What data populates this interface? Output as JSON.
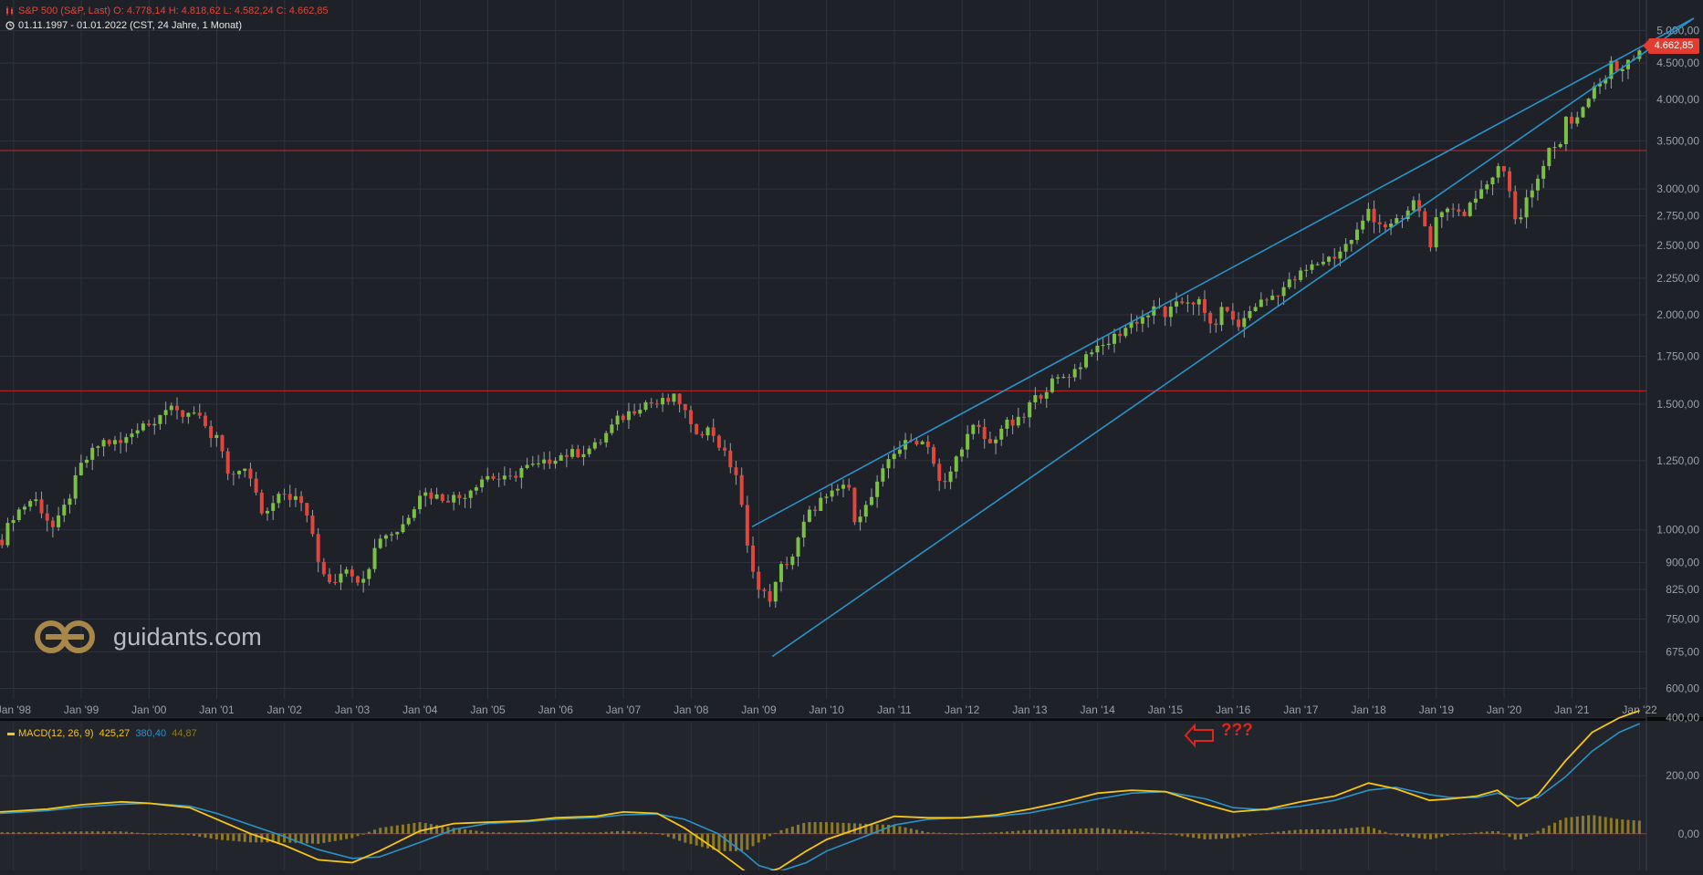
{
  "header": {
    "line1": "S&P 500 (S&P, Last)   O: 4.778,14   H: 4.818,62   L: 4.582,24   C: 4.662,85",
    "line2": "01.11.1997 - 01.01.2022   (CST, 24 Jahre, 1 Monat)"
  },
  "price_tag": "4.662,85",
  "logo_text": "guidants.com",
  "annotation": "???",
  "macd_legend": {
    "name": "MACD(12, 26, 9)",
    "macd": "425,27",
    "signal": "380,40",
    "hist": "44,87"
  },
  "colors": {
    "background": "#1e2128",
    "grid": "#2f333c",
    "up": "#7bc043",
    "down": "#e0463c",
    "channel": "#2a93c9",
    "hline": "#c62828",
    "macd": "#f5c518",
    "signal": "#2a93c9",
    "histogram": "#8a7a2a"
  },
  "chart_data": [
    {
      "type": "candlestick",
      "title": "S&P 500 (S&P, Last)",
      "period": "monthly",
      "yscale": "log",
      "ylim": [
        580,
        5200
      ],
      "xlim": [
        1997.8,
        2022.1
      ],
      "xticks": [
        "Jan '98",
        "Jan '99",
        "Jan '00",
        "Jan '01",
        "Jan '02",
        "Jan '03",
        "Jan '04",
        "Jan '05",
        "Jan '06",
        "Jan '07",
        "Jan '08",
        "Jan '09",
        "Jan '10",
        "Jan '11",
        "Jan '12",
        "Jan '13",
        "Jan '14",
        "Jan '15",
        "Jan '16",
        "Jan '17",
        "Jan '18",
        "Jan '19",
        "Jan '20",
        "Jan '21",
        "Jan '22"
      ],
      "yticks": [
        {
          "v": 5000,
          "label": "5.000,00"
        },
        {
          "v": 4500,
          "label": "4.500,00"
        },
        {
          "v": 4000,
          "label": "4.000,00"
        },
        {
          "v": 3500,
          "label": "3.500,00"
        },
        {
          "v": 3000,
          "label": "3.000,00"
        },
        {
          "v": 2750,
          "label": "2.750,00"
        },
        {
          "v": 2500,
          "label": "2.500,00"
        },
        {
          "v": 2250,
          "label": "2.250,00"
        },
        {
          "v": 2000,
          "label": "2.000,00"
        },
        {
          "v": 1750,
          "label": "1.750,00"
        },
        {
          "v": 1500,
          "label": "1.500,00"
        },
        {
          "v": 1250,
          "label": "1.250,00"
        },
        {
          "v": 1000,
          "label": "1.000,00"
        },
        {
          "v": 900,
          "label": "900,00"
        },
        {
          "v": 825,
          "label": "825,00"
        },
        {
          "v": 750,
          "label": "750,00"
        },
        {
          "v": 675,
          "label": "675,00"
        },
        {
          "v": 600,
          "label": "600,00"
        }
      ],
      "horizontal_lines": [
        3395,
        1565
      ],
      "channel_lines": [
        {
          "x1": 2008.9,
          "y1": 1010,
          "x2": 2022.8,
          "y2": 5200
        },
        {
          "x1": 2009.2,
          "y1": 665,
          "x2": 2022.8,
          "y2": 5200
        }
      ],
      "closes": {
        "1997.8": 955,
        "1998.0": 1050,
        "1998.3": 1110,
        "1998.6": 1000,
        "1998.8": 1100,
        "1999.0": 1230,
        "1999.3": 1330,
        "1999.6": 1320,
        "1999.9": 1420,
        "2000.0": 1400,
        "2000.2": 1480,
        "2000.5": 1450,
        "2000.7": 1480,
        "2000.9": 1320,
        "2001.0": 1360,
        "2001.2": 1160,
        "2001.4": 1240,
        "2001.7": 1040,
        "2001.9": 1140,
        "2002.0": 1130,
        "2002.3": 1080,
        "2002.5": 900,
        "2002.7": 840,
        "2002.9": 900,
        "2003.0": 850,
        "2003.2": 870,
        "2003.4": 980,
        "2003.7": 1000,
        "2003.9": 1080,
        "2004.0": 1130,
        "2004.3": 1110,
        "2004.6": 1110,
        "2004.9": 1180,
        "2005.0": 1190,
        "2005.3": 1170,
        "2005.5": 1220,
        "2005.8": 1230,
        "2005.9": 1250,
        "2006.0": 1270,
        "2006.3": 1280,
        "2006.6": 1310,
        "2006.9": 1420,
        "2007.0": 1440,
        "2007.3": 1510,
        "2007.5": 1500,
        "2007.8": 1530,
        "2007.9": 1470,
        "2008.0": 1380,
        "2008.3": 1380,
        "2008.5": 1270,
        "2008.7": 1180,
        "2008.8": 960,
        "2008.9": 900,
        "2009.0": 820,
        "2009.2": 800,
        "2009.3": 880,
        "2009.5": 920,
        "2009.7": 1040,
        "2009.9": 1100,
        "2010.0": 1100,
        "2010.3": 1170,
        "2010.4": 1040,
        "2010.6": 1080,
        "2010.8": 1180,
        "2010.9": 1250,
        "2011.0": 1290,
        "2011.3": 1340,
        "2011.5": 1320,
        "2011.6": 1220,
        "2011.7": 1130,
        "2011.9": 1250,
        "2012.0": 1320,
        "2012.2": 1400,
        "2012.4": 1310,
        "2012.6": 1400,
        "2012.8": 1410,
        "2012.9": 1430,
        "2013.0": 1500,
        "2013.3": 1600,
        "2013.5": 1640,
        "2013.7": 1680,
        "2013.9": 1800,
        "2014.0": 1780,
        "2014.3": 1880,
        "2014.5": 1950,
        "2014.7": 1990,
        "2014.9": 2050,
        "2015.0": 2000,
        "2015.3": 2100,
        "2015.5": 2080,
        "2015.6": 1970,
        "2015.7": 1920,
        "2015.9": 2070,
        "2016.0": 1940,
        "2016.1": 1930,
        "2016.3": 2060,
        "2016.5": 2100,
        "2016.7": 2170,
        "2016.9": 2240,
        "2017.0": 2280,
        "2017.3": 2380,
        "2017.5": 2420,
        "2017.7": 2520,
        "2017.9": 2670,
        "2018.0": 2820,
        "2018.1": 2710,
        "2018.3": 2650,
        "2018.5": 2720,
        "2018.7": 2900,
        "2018.8": 2710,
        "2018.9": 2500,
        "2019.0": 2700,
        "2019.3": 2850,
        "2019.4": 2750,
        "2019.6": 2980,
        "2019.8": 3000,
        "2019.9": 3230,
        "2020.0": 3230,
        "2020.1": 2950,
        "2020.2": 2580,
        "2020.3": 2900,
        "2020.5": 3100,
        "2020.7": 3500,
        "2020.8": 3360,
        "2020.9": 3750,
        "2021.0": 3710,
        "2021.2": 3970,
        "2021.3": 4180,
        "2021.5": 4300,
        "2021.6": 4520,
        "2021.7": 4300,
        "2021.8": 4600,
        "2021.9": 4570,
        "2022.0": 4660
      }
    },
    {
      "type": "line",
      "title": "MACD(12, 26, 9)",
      "ylim": [
        -70,
        440
      ],
      "yticks": [
        {
          "v": 400,
          "label": "400,00"
        },
        {
          "v": 200,
          "label": "200,00"
        },
        {
          "v": 0,
          "label": "0,00"
        }
      ],
      "series": [
        {
          "name": "MACD",
          "x": [
            1997.8,
            1998.5,
            1999.0,
            1999.6,
            2000.0,
            2000.6,
            2001.0,
            2001.5,
            2002.0,
            2002.5,
            2003.0,
            2003.4,
            2004.0,
            2004.5,
            2005.0,
            2005.6,
            2006.0,
            2006.6,
            2007.0,
            2007.5,
            2007.9,
            2008.4,
            2008.8,
            2009.0,
            2009.3,
            2009.7,
            2010.0,
            2010.5,
            2011.0,
            2011.5,
            2012.0,
            2012.5,
            2013.0,
            2013.5,
            2014.0,
            2014.5,
            2015.0,
            2015.6,
            2016.0,
            2016.5,
            2017.0,
            2017.5,
            2018.0,
            2018.4,
            2018.9,
            2019.2,
            2019.6,
            2019.9,
            2020.2,
            2020.5,
            2020.9,
            2021.3,
            2021.7,
            2022.0
          ],
          "values": [
            75,
            85,
            100,
            110,
            105,
            90,
            50,
            0,
            -40,
            -90,
            -100,
            -60,
            10,
            35,
            40,
            45,
            55,
            60,
            75,
            70,
            20,
            -60,
            -130,
            -140,
            -120,
            -60,
            -20,
            20,
            60,
            55,
            55,
            65,
            85,
            110,
            140,
            150,
            145,
            100,
            75,
            85,
            110,
            130,
            175,
            155,
            115,
            120,
            130,
            150,
            95,
            135,
            250,
            350,
            400,
            425
          ]
        },
        {
          "name": "Signal",
          "x": [
            1997.8,
            1998.5,
            1999.0,
            1999.6,
            2000.0,
            2000.6,
            2001.0,
            2001.5,
            2002.0,
            2002.5,
            2003.0,
            2003.4,
            2004.0,
            2004.5,
            2005.0,
            2005.6,
            2006.0,
            2006.6,
            2007.0,
            2007.5,
            2007.9,
            2008.4,
            2008.8,
            2009.0,
            2009.3,
            2009.7,
            2010.0,
            2010.5,
            2011.0,
            2011.5,
            2012.0,
            2012.5,
            2013.0,
            2013.5,
            2014.0,
            2014.5,
            2015.0,
            2015.6,
            2016.0,
            2016.5,
            2017.0,
            2017.5,
            2018.0,
            2018.4,
            2018.9,
            2019.2,
            2019.6,
            2019.9,
            2020.2,
            2020.5,
            2020.9,
            2021.3,
            2021.7,
            2022.0
          ],
          "values": [
            70,
            80,
            92,
            102,
            105,
            95,
            70,
            30,
            -10,
            -55,
            -85,
            -80,
            -30,
            15,
            35,
            42,
            50,
            56,
            65,
            68,
            50,
            0,
            -70,
            -110,
            -130,
            -100,
            -60,
            -15,
            30,
            50,
            55,
            60,
            72,
            95,
            120,
            140,
            145,
            120,
            90,
            82,
            95,
            115,
            150,
            160,
            135,
            125,
            125,
            140,
            120,
            125,
            195,
            285,
            350,
            380
          ]
        },
        {
          "name": "Histogram",
          "x": [
            1997.8,
            1998.5,
            1999.0,
            1999.6,
            2000.0,
            2000.6,
            2001.0,
            2001.5,
            2002.0,
            2002.5,
            2003.0,
            2003.4,
            2004.0,
            2004.5,
            2005.0,
            2005.6,
            2006.0,
            2006.6,
            2007.0,
            2007.5,
            2007.9,
            2008.4,
            2008.8,
            2009.0,
            2009.3,
            2009.7,
            2010.0,
            2010.5,
            2011.0,
            2011.5,
            2012.0,
            2012.5,
            2013.0,
            2013.5,
            2014.0,
            2014.5,
            2015.0,
            2015.6,
            2016.0,
            2016.5,
            2017.0,
            2017.5,
            2018.0,
            2018.4,
            2018.9,
            2019.2,
            2019.6,
            2019.9,
            2020.2,
            2020.5,
            2020.9,
            2021.3,
            2021.7,
            2022.0
          ],
          "values": [
            5,
            5,
            8,
            8,
            0,
            -5,
            -20,
            -30,
            -30,
            -35,
            -15,
            20,
            40,
            20,
            5,
            3,
            5,
            4,
            10,
            2,
            -30,
            -60,
            -60,
            -30,
            10,
            40,
            40,
            35,
            30,
            5,
            0,
            5,
            13,
            15,
            20,
            10,
            0,
            -20,
            -15,
            3,
            15,
            15,
            25,
            -5,
            -20,
            -5,
            5,
            10,
            -25,
            10,
            55,
            65,
            50,
            45
          ]
        }
      ]
    }
  ]
}
